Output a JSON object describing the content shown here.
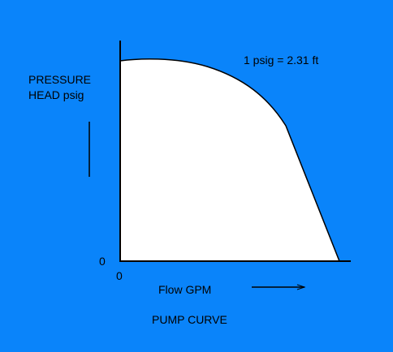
{
  "diagram": {
    "y_axis_label": [
      "PRESSURE",
      "HEAD psig"
    ],
    "note": "1 psig = 2.31 ft",
    "y_origin": "0",
    "x_origin": "0",
    "x_axis_label": "Flow GPM",
    "title": "PUMP CURVE"
  }
}
